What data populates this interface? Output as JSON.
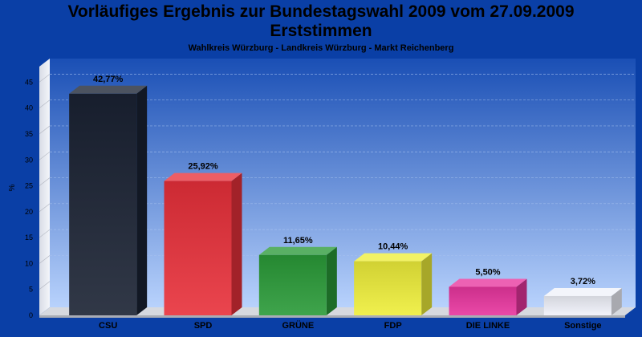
{
  "chart_data": {
    "type": "bar",
    "title_lines": [
      "Vorläufiges Ergebnis zur Bundestagswahl 2009 vom 27.09.2009",
      "Erststimmen"
    ],
    "subtitle": "Wahlkreis Würzburg - Landkreis Würzburg - Markt Reichenberg",
    "ylabel": "%",
    "xlabel": "",
    "ylim": [
      0,
      48
    ],
    "yticks": [
      0,
      5,
      10,
      15,
      20,
      25,
      30,
      35,
      40,
      45
    ],
    "grid": true,
    "legend": "none",
    "categories": [
      "CSU",
      "SPD",
      "GRÜNE",
      "FDP",
      "DIE LINKE",
      "Sonstige"
    ],
    "values": [
      42.77,
      25.92,
      11.65,
      10.44,
      5.5,
      3.72
    ],
    "value_labels": [
      "42,77%",
      "25,92%",
      "11,65%",
      "10,44%",
      "5,50%",
      "3,72%"
    ],
    "colors": [
      "#1a2233",
      "#e8303a",
      "#2a9a38",
      "#eeee3a",
      "#e8359e",
      "#f0f2fa"
    ]
  }
}
